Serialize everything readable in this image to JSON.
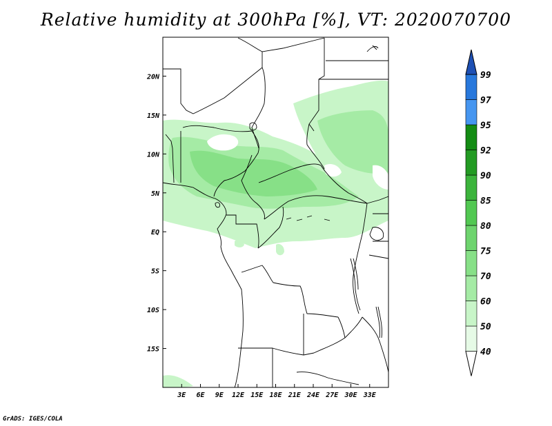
{
  "title": "Relative humidity at 300hPa [%], VT: 2020070700",
  "credit": "GrADS: IGES/COLA",
  "map": {
    "lon_range": [
      0,
      36
    ],
    "lat_range": [
      -20,
      25
    ],
    "x_ticks": [
      {
        "lon": 3,
        "label": "3E"
      },
      {
        "lon": 6,
        "label": "6E"
      },
      {
        "lon": 9,
        "label": "9E"
      },
      {
        "lon": 12,
        "label": "12E"
      },
      {
        "lon": 15,
        "label": "15E"
      },
      {
        "lon": 18,
        "label": "18E"
      },
      {
        "lon": 21,
        "label": "21E"
      },
      {
        "lon": 24,
        "label": "24E"
      },
      {
        "lon": 27,
        "label": "27E"
      },
      {
        "lon": 30,
        "label": "30E"
      },
      {
        "lon": 33,
        "label": "33E"
      }
    ],
    "y_ticks": [
      {
        "lat": 20,
        "label": "20N"
      },
      {
        "lat": 15,
        "label": "15N"
      },
      {
        "lat": 10,
        "label": "10N"
      },
      {
        "lat": 5,
        "label": "5N"
      },
      {
        "lat": 0,
        "label": "EQ"
      },
      {
        "lat": -5,
        "label": "5S"
      },
      {
        "lat": -10,
        "label": "10S"
      },
      {
        "lat": -15,
        "label": "15S"
      }
    ]
  },
  "colorbar": {
    "levels": [
      "40",
      "50",
      "60",
      "70",
      "75",
      "80",
      "85",
      "90",
      "92",
      "95",
      "97",
      "99"
    ],
    "colors": [
      "#e6fae6",
      "#c8f5c8",
      "#a5eba5",
      "#87e087",
      "#6ed46e",
      "#52c852",
      "#3cb43c",
      "#239b23",
      "#148c14",
      "#4696f0",
      "#2878dc",
      "#1e5ac8"
    ],
    "under_color": "#ffffff",
    "over_color": "#1e50b4"
  }
}
